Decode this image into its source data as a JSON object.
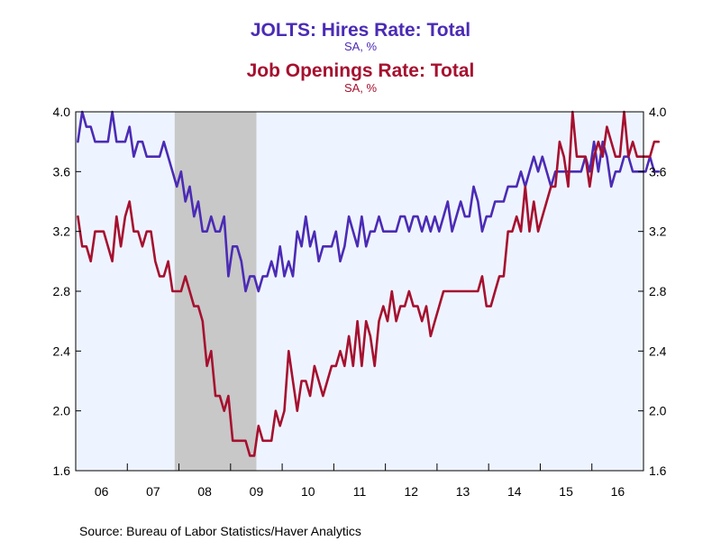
{
  "chart_data": {
    "type": "line",
    "titles": [
      {
        "title": "JOLTS: Hires Rate: Total",
        "subtitle": "SA, %",
        "color": "#4B2BB5"
      },
      {
        "title": "Job Openings Rate: Total",
        "subtitle": "SA, %",
        "color": "#A6102F"
      }
    ],
    "source": "Source:  Bureau of Labor Statistics/Haver Analytics",
    "x_range": [
      "2006-01",
      "2016-12"
    ],
    "x_tick_labels": [
      "06",
      "07",
      "08",
      "09",
      "10",
      "11",
      "12",
      "13",
      "14",
      "15",
      "16"
    ],
    "ylim": [
      1.6,
      4.0
    ],
    "y_ticks": [
      1.6,
      2.0,
      2.4,
      2.8,
      3.2,
      3.6,
      4.0
    ],
    "y_tick_labels": [
      "1.6",
      "2.0",
      "2.4",
      "2.8",
      "3.2",
      "3.6",
      "4.0"
    ],
    "y_right_tick_labels": [
      "1.6",
      "2.0",
      "2.4",
      "2.8",
      "3.2",
      "3.6",
      "4.0"
    ],
    "grid": false,
    "plot_background": "#EEF4FF",
    "recession_shading": {
      "start": "2007-12",
      "end": "2009-06",
      "color": "#C8C8C8"
    },
    "series": [
      {
        "name": "JOLTS: Hires Rate: Total",
        "color": "#4B2BB5",
        "start": "2006-01",
        "values": [
          3.8,
          4.0,
          3.9,
          3.9,
          3.8,
          3.8,
          3.8,
          3.8,
          4.0,
          3.8,
          3.8,
          3.8,
          3.9,
          3.7,
          3.8,
          3.8,
          3.7,
          3.7,
          3.7,
          3.7,
          3.8,
          3.7,
          3.6,
          3.5,
          3.6,
          3.4,
          3.5,
          3.3,
          3.4,
          3.2,
          3.2,
          3.3,
          3.2,
          3.2,
          3.3,
          2.9,
          3.1,
          3.1,
          3.0,
          2.8,
          2.9,
          2.9,
          2.8,
          2.9,
          2.9,
          3.0,
          2.9,
          3.1,
          2.9,
          3.0,
          2.9,
          3.2,
          3.1,
          3.3,
          3.1,
          3.2,
          3.0,
          3.1,
          3.1,
          3.1,
          3.2,
          3.0,
          3.1,
          3.3,
          3.2,
          3.1,
          3.3,
          3.1,
          3.2,
          3.2,
          3.3,
          3.2,
          3.2,
          3.2,
          3.2,
          3.3,
          3.3,
          3.2,
          3.3,
          3.3,
          3.2,
          3.3,
          3.2,
          3.3,
          3.2,
          3.3,
          3.4,
          3.2,
          3.3,
          3.4,
          3.3,
          3.3,
          3.5,
          3.4,
          3.2,
          3.3,
          3.3,
          3.4,
          3.4,
          3.4,
          3.5,
          3.5,
          3.5,
          3.6,
          3.5,
          3.6,
          3.7,
          3.6,
          3.7,
          3.6,
          3.5,
          3.6,
          3.6,
          3.6,
          3.6,
          3.6,
          3.6,
          3.6,
          3.7,
          3.6,
          3.8,
          3.6,
          3.8,
          3.7,
          3.5,
          3.6,
          3.6,
          3.7,
          3.7,
          3.6,
          3.6,
          3.6,
          3.6,
          3.7,
          3.6,
          3.6
        ]
      },
      {
        "name": "Job Openings Rate: Total",
        "color": "#A6102F",
        "start": "2006-01",
        "values": [
          3.3,
          3.1,
          3.1,
          3.0,
          3.2,
          3.2,
          3.2,
          3.1,
          3.0,
          3.3,
          3.1,
          3.3,
          3.4,
          3.2,
          3.2,
          3.1,
          3.2,
          3.2,
          3.0,
          2.9,
          2.9,
          3.0,
          2.8,
          2.8,
          2.8,
          2.9,
          2.8,
          2.7,
          2.7,
          2.6,
          2.3,
          2.4,
          2.1,
          2.1,
          2.0,
          2.1,
          1.8,
          1.8,
          1.8,
          1.8,
          1.7,
          1.7,
          1.9,
          1.8,
          1.8,
          1.8,
          2.0,
          1.9,
          2.0,
          2.4,
          2.2,
          2.0,
          2.2,
          2.2,
          2.1,
          2.3,
          2.2,
          2.1,
          2.2,
          2.3,
          2.3,
          2.4,
          2.3,
          2.5,
          2.3,
          2.6,
          2.3,
          2.6,
          2.5,
          2.3,
          2.6,
          2.7,
          2.6,
          2.8,
          2.6,
          2.7,
          2.7,
          2.8,
          2.7,
          2.7,
          2.6,
          2.7,
          2.5,
          2.6,
          2.7,
          2.8,
          2.8,
          2.8,
          2.8,
          2.8,
          2.8,
          2.8,
          2.8,
          2.8,
          2.9,
          2.7,
          2.7,
          2.8,
          2.9,
          2.9,
          3.2,
          3.2,
          3.3,
          3.2,
          3.5,
          3.2,
          3.4,
          3.2,
          3.3,
          3.4,
          3.5,
          3.5,
          3.8,
          3.7,
          3.5,
          4.0,
          3.7,
          3.7,
          3.7,
          3.5,
          3.7,
          3.8,
          3.7,
          3.9,
          3.8,
          3.7,
          3.7,
          4.0,
          3.7,
          3.8,
          3.7,
          3.7,
          3.7,
          3.7,
          3.8,
          3.8
        ]
      }
    ]
  }
}
